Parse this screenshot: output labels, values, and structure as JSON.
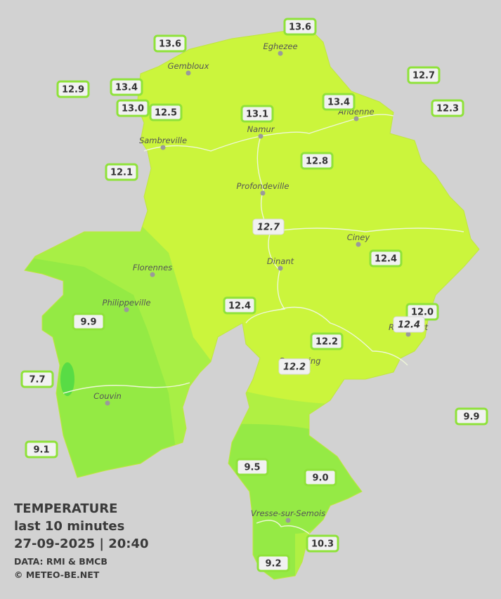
{
  "cities": [
    "Eghezee",
    "Gembloux",
    "Andenne",
    "Namur",
    "Sambreville",
    "Profondeville",
    "Ciney",
    "Dinant",
    "Florennes",
    "Philippeville",
    "Rochefort",
    "Beauraing",
    "Couvin",
    "Vresse-sur-Semois"
  ],
  "stations": [
    "13.6",
    "13.6",
    "12.7",
    "12.9",
    "13.4",
    "13.4",
    "13.0",
    "12.5",
    "13.1",
    "12.3",
    "12.1",
    "12.8",
    "12.7",
    "12.4",
    "12.4",
    "12.0",
    "12.4",
    "9.9",
    "12.2",
    "12.2",
    "7.7",
    "9.9",
    "9.1",
    "9.5",
    "9.0",
    "10.3",
    "9.2"
  ],
  "info": {
    "title": "TEMPERATURE",
    "period": "last 10 minutes",
    "datetime": "27-09-2025  |  20:40",
    "source": "DATA: RMI & BMCB",
    "copyright": "© METEO-BE.NET"
  }
}
